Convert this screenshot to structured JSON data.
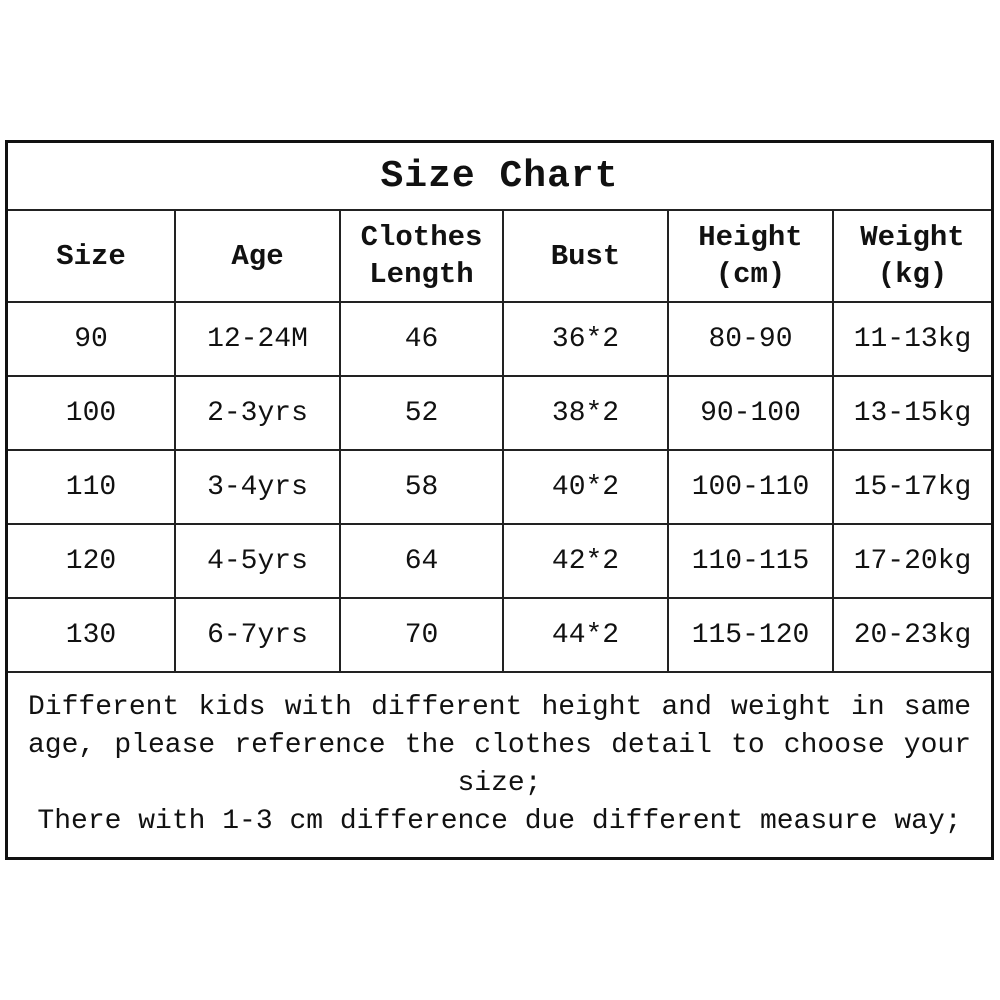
{
  "title": "Size Chart",
  "columns": [
    "Size",
    "Age",
    "Clothes\nLength",
    "Bust",
    "Height\n(cm)",
    "Weight\n(kg)"
  ],
  "rows": [
    [
      "90",
      "12-24M",
      "46",
      "36*2",
      "80-90",
      "11-13kg"
    ],
    [
      "100",
      "2-3yrs",
      "52",
      "38*2",
      "90-100",
      "13-15kg"
    ],
    [
      "110",
      "3-4yrs",
      "58",
      "40*2",
      "100-110",
      "15-17kg"
    ],
    [
      "120",
      "4-5yrs",
      "64",
      "42*2",
      "110-115",
      "17-20kg"
    ],
    [
      "130",
      "6-7yrs",
      "70",
      "44*2",
      "115-120",
      "20-23kg"
    ]
  ],
  "notes": [
    "Different kids with different height and weight in same age, please reference the clothes detail to choose your size;",
    "There with 1-3 cm difference due different measure way;"
  ]
}
